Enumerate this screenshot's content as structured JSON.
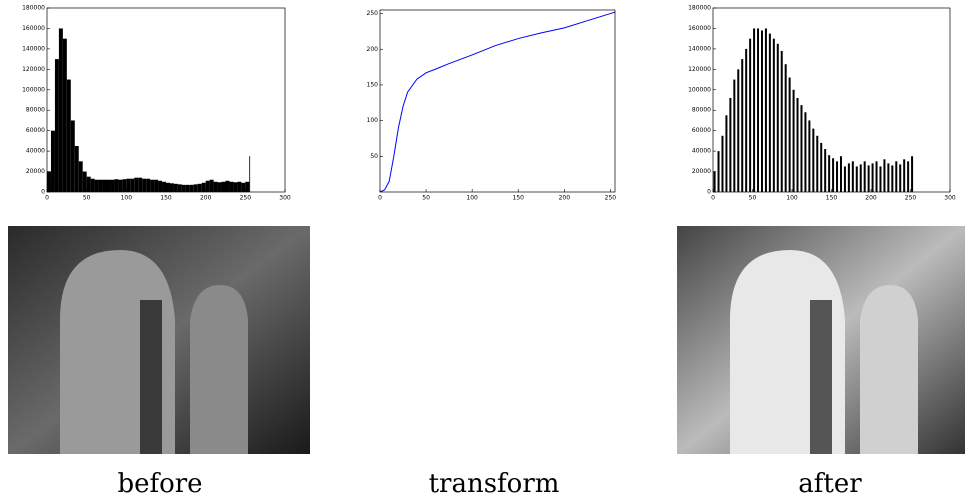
{
  "chart_data": [
    {
      "type": "histogram",
      "caption": "before",
      "color": "#000000",
      "bins": [
        0,
        5,
        10,
        15,
        20,
        25,
        30,
        35,
        40,
        45,
        50,
        55,
        60,
        65,
        70,
        75,
        80,
        85,
        90,
        95,
        100,
        105,
        110,
        115,
        120,
        125,
        130,
        135,
        140,
        145,
        150,
        155,
        160,
        165,
        170,
        175,
        180,
        185,
        190,
        195,
        200,
        205,
        210,
        215,
        220,
        225,
        230,
        235,
        240,
        245,
        250,
        255,
        256
      ],
      "values": [
        20000,
        60000,
        130000,
        160000,
        150000,
        110000,
        70000,
        45000,
        30000,
        20000,
        15000,
        13000,
        12000,
        12000,
        12000,
        12000,
        12000,
        12500,
        12000,
        12500,
        13000,
        13000,
        14000,
        14000,
        13000,
        13000,
        12000,
        12000,
        11000,
        10000,
        9000,
        8500,
        8000,
        7500,
        7000,
        7000,
        7000,
        7500,
        8000,
        9000,
        11000,
        12000,
        10000,
        9500,
        10000,
        11000,
        10000,
        9500,
        10000,
        9000,
        10000,
        35000
      ],
      "xlim": [
        0,
        300
      ],
      "xticks": [
        0,
        50,
        100,
        150,
        200,
        250,
        300
      ],
      "ylim": [
        0,
        180000
      ],
      "yticks": [
        0,
        20000,
        40000,
        60000,
        80000,
        100000,
        120000,
        140000,
        160000,
        180000
      ]
    },
    {
      "type": "line",
      "caption": "transform",
      "color": "#0000ff",
      "x": [
        0,
        5,
        10,
        15,
        20,
        25,
        30,
        40,
        50,
        60,
        75,
        100,
        125,
        150,
        175,
        200,
        225,
        250,
        255
      ],
      "values": [
        0,
        3,
        15,
        50,
        90,
        120,
        140,
        158,
        167,
        172,
        180,
        192,
        205,
        215,
        223,
        230,
        240,
        250,
        252
      ],
      "xlim": [
        0,
        255
      ],
      "xticks": [
        0,
        50,
        100,
        150,
        200,
        250
      ],
      "ylim": [
        0,
        255
      ],
      "yticks": [
        50,
        100,
        150,
        200,
        250
      ]
    },
    {
      "type": "bar",
      "caption": "after",
      "color": "#000000",
      "x": [
        2,
        7,
        12,
        17,
        22,
        27,
        32,
        37,
        42,
        47,
        52,
        57,
        62,
        67,
        72,
        77,
        82,
        87,
        92,
        97,
        102,
        107,
        112,
        117,
        122,
        127,
        132,
        137,
        142,
        147,
        152,
        157,
        162,
        167,
        172,
        177,
        182,
        187,
        192,
        197,
        202,
        207,
        212,
        217,
        222,
        227,
        232,
        237,
        242,
        247,
        252
      ],
      "values": [
        20000,
        40000,
        55000,
        75000,
        92000,
        110000,
        120000,
        130000,
        140000,
        150000,
        160000,
        160000,
        158000,
        160000,
        155000,
        150000,
        145000,
        138000,
        125000,
        112000,
        100000,
        92000,
        85000,
        78000,
        70000,
        62000,
        55000,
        48000,
        42000,
        36000,
        33000,
        30000,
        35000,
        25000,
        28000,
        30000,
        25000,
        27000,
        30000,
        26000,
        28000,
        30000,
        25000,
        32000,
        28000,
        26000,
        30000,
        27000,
        32000,
        30000,
        35000
      ],
      "xlim": [
        0,
        300
      ],
      "xticks": [
        0,
        50,
        100,
        150,
        200,
        250,
        300
      ],
      "ylim": [
        0,
        180000
      ],
      "yticks": [
        0,
        20000,
        40000,
        60000,
        80000,
        100000,
        120000,
        140000,
        160000,
        180000
      ]
    }
  ]
}
